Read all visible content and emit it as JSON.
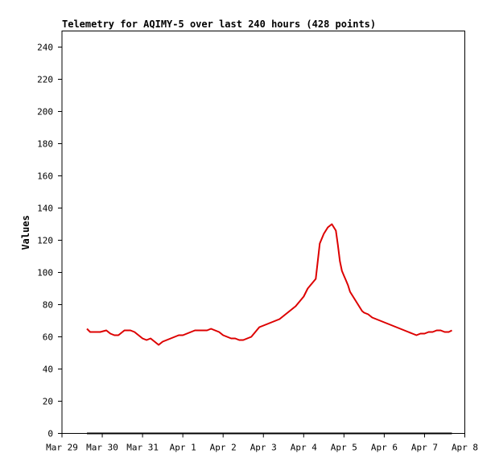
{
  "chart_data": {
    "type": "line",
    "title": "Telemetry for AQIMY-5 over last 240 hours (428 points)",
    "xlabel": "",
    "ylabel": "Values",
    "xlim": [
      "Mar 29",
      "Apr 8"
    ],
    "ylim": [
      0,
      250
    ],
    "grid": false,
    "legend": "none",
    "x_ticks": [
      "Mar 29",
      "Mar 30",
      "Mar 31",
      "Apr 1",
      "Apr 2",
      "Apr 3",
      "Apr 4",
      "Apr 5",
      "Apr 6",
      "Apr 7",
      "Apr 8"
    ],
    "y_ticks": [
      0,
      20,
      40,
      60,
      80,
      100,
      120,
      140,
      160,
      180,
      200,
      220,
      240
    ],
    "colors": {
      "series": "#dd0000",
      "baseline": "#000000",
      "axis": "#000000"
    },
    "x_unit": "days since Mar 29 00:00",
    "series": [
      {
        "name": "",
        "color": "#dd0000",
        "x": [
          0.62,
          0.7,
          0.8,
          0.95,
          1.1,
          1.2,
          1.3,
          1.4,
          1.55,
          1.7,
          1.8,
          1.9,
          2.0,
          2.1,
          2.2,
          2.3,
          2.4,
          2.5,
          2.6,
          2.7,
          2.8,
          2.9,
          3.0,
          3.1,
          3.2,
          3.3,
          3.4,
          3.5,
          3.6,
          3.7,
          3.8,
          3.9,
          4.0,
          4.1,
          4.2,
          4.3,
          4.4,
          4.5,
          4.6,
          4.7,
          4.8,
          4.9,
          5.0,
          5.1,
          5.2,
          5.3,
          5.4,
          5.5,
          5.6,
          5.7,
          5.8,
          5.9,
          6.0,
          6.1,
          6.2,
          6.3,
          6.4,
          6.5,
          6.6,
          6.7,
          6.8,
          6.85,
          6.9,
          6.95,
          7.0,
          7.05,
          7.1,
          7.15,
          7.2,
          7.25,
          7.3,
          7.35,
          7.4,
          7.45,
          7.5,
          7.6,
          7.7,
          7.8,
          7.9,
          8.0,
          8.1,
          8.2,
          8.3,
          8.4,
          8.5,
          8.6,
          8.7,
          8.8,
          8.9,
          9.0,
          9.1,
          9.2,
          9.3,
          9.4,
          9.5,
          9.6,
          9.68
        ],
        "values": [
          65,
          63,
          63,
          63,
          64,
          62,
          61,
          61,
          64,
          64,
          63,
          61,
          59,
          58,
          59,
          57,
          55,
          57,
          58,
          59,
          60,
          61,
          61,
          62,
          63,
          64,
          64,
          64,
          64,
          65,
          64,
          63,
          61,
          60,
          59,
          59,
          58,
          58,
          59,
          60,
          63,
          66,
          67,
          68,
          69,
          70,
          71,
          73,
          75,
          77,
          79,
          82,
          85,
          90,
          93,
          96,
          118,
          124,
          128,
          130,
          126,
          117,
          107,
          101,
          98,
          95,
          92,
          88,
          86,
          84,
          82,
          80,
          78,
          76,
          75,
          74,
          72,
          71,
          70,
          69,
          68,
          67,
          66,
          65,
          64,
          63,
          62,
          61,
          62,
          62,
          63,
          63,
          64,
          64,
          63,
          63,
          64
        ]
      }
    ]
  }
}
